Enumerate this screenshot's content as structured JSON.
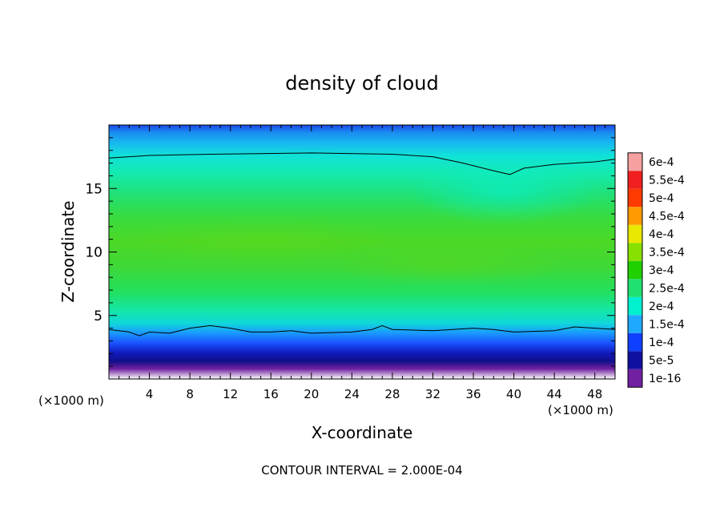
{
  "chart_data": {
    "type": "heatmap",
    "title": "density of cloud",
    "xlabel": "X-coordinate",
    "ylabel": "Z-coordinate",
    "x_unit_left": "(×1000 m)",
    "x_unit_right": "(×1000 m)",
    "footer": "CONTOUR INTERVAL = 2.000E-04",
    "xlim": [
      0,
      50
    ],
    "ylim": [
      0,
      20
    ],
    "xticks": [
      4,
      8,
      12,
      16,
      20,
      24,
      28,
      32,
      36,
      40,
      44,
      48
    ],
    "xtick_labels": [
      "4",
      "8",
      "12",
      "16",
      "20",
      "24",
      "28",
      "32",
      "36",
      "40",
      "44",
      "48"
    ],
    "yticks": [
      5,
      10,
      15
    ],
    "ytick_labels": [
      "5",
      "10",
      "15"
    ],
    "colorbar": {
      "levels": [
        "6e-4",
        "5.5e-4",
        "5e-4",
        "4.5e-4",
        "4e-4",
        "3.5e-4",
        "3e-4",
        "2.5e-4",
        "2e-4",
        "1.5e-4",
        "1e-4",
        "5e-5",
        "1e-16"
      ],
      "colors": [
        "#f7a0a0",
        "#f02020",
        "#ff3a00",
        "#ff9a00",
        "#e8e800",
        "#88e000",
        "#20d000",
        "#20e070",
        "#00f0d0",
        "#20a8ff",
        "#1040ff",
        "#1010a0",
        "#7020a0"
      ]
    },
    "contour_upper": [
      [
        0,
        17.4
      ],
      [
        4,
        17.6
      ],
      [
        10,
        17.7
      ],
      [
        20,
        17.8
      ],
      [
        28,
        17.7
      ],
      [
        32,
        17.5
      ],
      [
        35,
        17.0
      ],
      [
        38,
        16.4
      ],
      [
        39.6,
        16.1
      ],
      [
        41,
        16.6
      ],
      [
        44,
        16.9
      ],
      [
        48,
        17.1
      ],
      [
        50,
        17.3
      ]
    ],
    "contour_lower": [
      [
        0,
        3.9
      ],
      [
        2,
        3.7
      ],
      [
        3,
        3.4
      ],
      [
        4,
        3.7
      ],
      [
        6,
        3.6
      ],
      [
        8,
        4.0
      ],
      [
        10,
        4.2
      ],
      [
        12,
        4.0
      ],
      [
        14,
        3.7
      ],
      [
        16,
        3.7
      ],
      [
        18,
        3.8
      ],
      [
        20,
        3.6
      ],
      [
        24,
        3.7
      ],
      [
        26,
        3.9
      ],
      [
        27,
        4.2
      ],
      [
        28,
        3.9
      ],
      [
        32,
        3.8
      ],
      [
        36,
        4.0
      ],
      [
        38,
        3.9
      ],
      [
        40,
        3.7
      ],
      [
        44,
        3.8
      ],
      [
        46,
        4.1
      ],
      [
        50,
        3.9
      ]
    ]
  }
}
